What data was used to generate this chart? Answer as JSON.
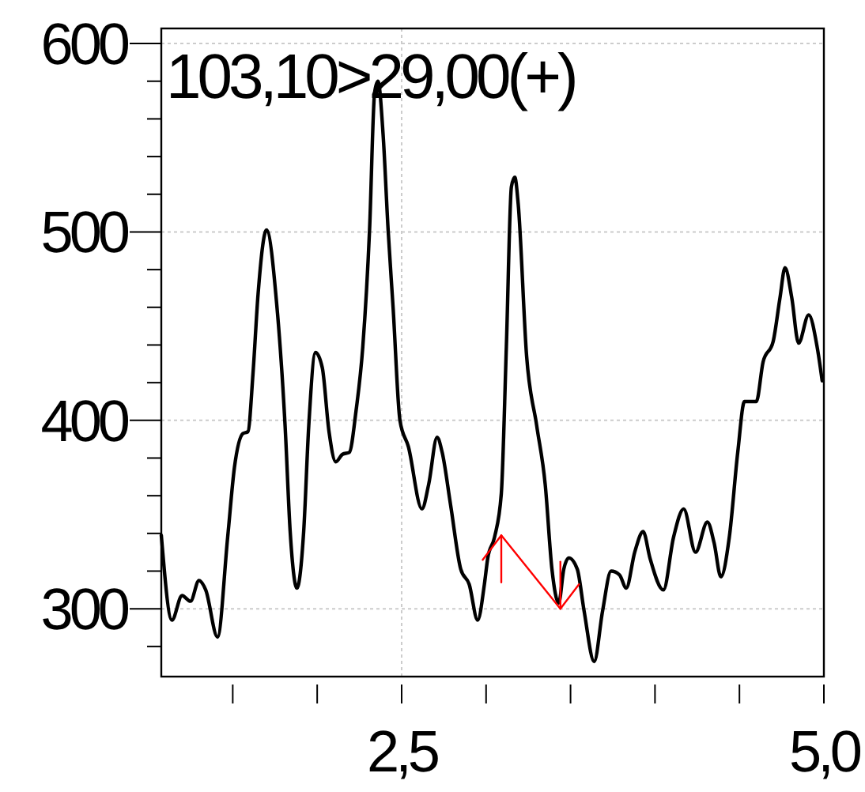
{
  "chart_data": {
    "type": "line",
    "title": "103,10>29,00(+)",
    "xlim": [
      1.077,
      5.0
    ],
    "ylim": [
      264,
      608
    ],
    "xticks": [
      {
        "value": 1.5,
        "label": null
      },
      {
        "value": 2.0,
        "label": null
      },
      {
        "value": 2.5,
        "label": "2,5"
      },
      {
        "value": 3.0,
        "label": null
      },
      {
        "value": 3.5,
        "label": null
      },
      {
        "value": 4.0,
        "label": null
      },
      {
        "value": 4.5,
        "label": null
      },
      {
        "value": 5.0,
        "label": "5,0"
      }
    ],
    "yticks": [
      {
        "value": 280,
        "label": null
      },
      300,
      {
        "value": 320,
        "label": null
      },
      {
        "value": 340,
        "label": null
      },
      {
        "value": 360,
        "label": null
      },
      {
        "value": 380,
        "label": null
      },
      400,
      {
        "value": 420,
        "label": null
      },
      {
        "value": 440,
        "label": null
      },
      {
        "value": 460,
        "label": null
      },
      {
        "value": 480,
        "label": null
      },
      500,
      {
        "value": 520,
        "label": null
      },
      {
        "value": 540,
        "label": null
      },
      {
        "value": 560,
        "label": null
      },
      {
        "value": 580,
        "label": null
      },
      600
    ],
    "grid": true,
    "line_style": "solid",
    "series": [
      {
        "color": "#000000",
        "x": [
          1.077,
          1.14,
          1.2,
          1.25,
          1.3,
          1.34,
          1.41,
          1.47,
          1.51,
          1.56,
          1.59,
          1.62,
          1.65,
          1.7,
          1.76,
          1.81,
          1.84,
          1.88,
          1.92,
          1.95,
          1.99,
          2.03,
          2.07,
          2.11,
          2.15,
          2.19,
          2.23,
          2.27,
          2.31,
          2.34,
          2.36,
          2.39,
          2.42,
          2.45,
          2.49,
          2.54,
          2.62,
          2.66,
          2.71,
          2.74,
          2.79,
          2.85,
          2.9,
          2.95,
          2.99,
          3.01,
          3.05,
          3.09,
          3.12,
          3.15,
          3.17,
          3.19,
          3.24,
          3.3,
          3.35,
          3.39,
          3.43,
          3.46,
          3.49,
          3.54,
          3.58,
          3.64,
          3.69,
          3.74,
          3.79,
          3.83,
          3.88,
          3.93,
          3.97,
          4.05,
          4.11,
          4.17,
          4.24,
          4.31,
          4.35,
          4.39,
          4.44,
          4.49,
          4.53,
          4.6,
          4.64,
          4.7,
          4.74,
          4.77,
          4.81,
          4.85,
          4.91,
          4.96,
          4.99
        ],
        "values": [
          339,
          294,
          307,
          304,
          315,
          310,
          285,
          338,
          375,
          393,
          394,
          425,
          467,
          501,
          462,
          397,
          341,
          311,
          341,
          397,
          436,
          428,
          394,
          378,
          382,
          383,
          405,
          439,
          501,
          574,
          580,
          552,
          501,
          459,
          400,
          386,
          353,
          366,
          391,
          383,
          355,
          321,
          313,
          294,
          313,
          327,
          338,
          361,
          439,
          524,
          529,
          515,
          434,
          397,
          366,
          321,
          303,
          321,
          327,
          321,
          299,
          272,
          299,
          320,
          318,
          311,
          330,
          341,
          327,
          310,
          338,
          353,
          330,
          346,
          335,
          317,
          338,
          383,
          410,
          410,
          431,
          442,
          465,
          481,
          465,
          441,
          456,
          439,
          421
        ]
      },
      {
        "color": "#ff0000",
        "x": [
          2.98,
          3.09,
          3.44,
          3.55
        ],
        "values": [
          326,
          339,
          300,
          313
        ]
      },
      {
        "color": "#ff0000",
        "x": [
          3.09,
          3.09
        ],
        "values": [
          314,
          339
        ]
      },
      {
        "color": "#ff0000",
        "x": [
          3.44,
          3.44
        ],
        "values": [
          300,
          325
        ]
      }
    ]
  }
}
